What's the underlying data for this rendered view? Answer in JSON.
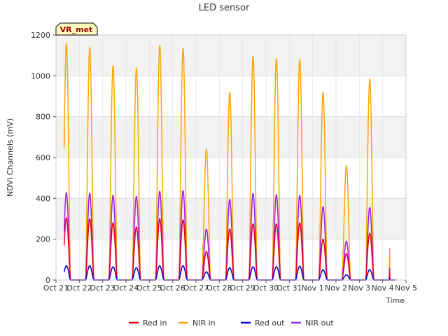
{
  "chart_data": {
    "type": "line",
    "title": "LED sensor",
    "xlabel": "Time",
    "ylabel": "NDVI Channels (mV)",
    "site_label": "VR_met",
    "ylim": [
      0,
      1200
    ],
    "xlim": [
      0,
      15
    ],
    "y_ticks": [
      0,
      200,
      400,
      600,
      800,
      1000,
      1200
    ],
    "x_ticks": [
      "Oct 21",
      "Oct 22",
      "Oct 23",
      "Oct 24",
      "Oct 25",
      "Oct 26",
      "Oct 27",
      "Oct 28",
      "Oct 29",
      "Oct 30",
      "Oct 31",
      "Nov 1",
      "Nov 2",
      "Nov 3",
      "Nov 4",
      "Nov 5"
    ],
    "legend_position": "bottom-center",
    "grid": true,
    "series": [
      {
        "name": "Red in",
        "color": "#e8001c",
        "daily_peaks": [
          305,
          300,
          280,
          260,
          300,
          295,
          140,
          250,
          275,
          275,
          280,
          200,
          130,
          230
        ]
      },
      {
        "name": "NIR in",
        "color": "#ffa500",
        "daily_peaks": [
          1160,
          1140,
          1050,
          1040,
          1150,
          1135,
          640,
          920,
          1095,
          1085,
          1080,
          920,
          560,
          985
        ]
      },
      {
        "name": "Red out",
        "color": "#0000cc",
        "daily_peaks": [
          70,
          70,
          65,
          60,
          70,
          70,
          40,
          60,
          65,
          65,
          68,
          50,
          25,
          50
        ]
      },
      {
        "name": "NIR out",
        "color": "#9a1ee6",
        "daily_peaks": [
          428,
          425,
          415,
          410,
          435,
          438,
          250,
          395,
          425,
          418,
          415,
          360,
          190,
          355
        ]
      }
    ]
  }
}
